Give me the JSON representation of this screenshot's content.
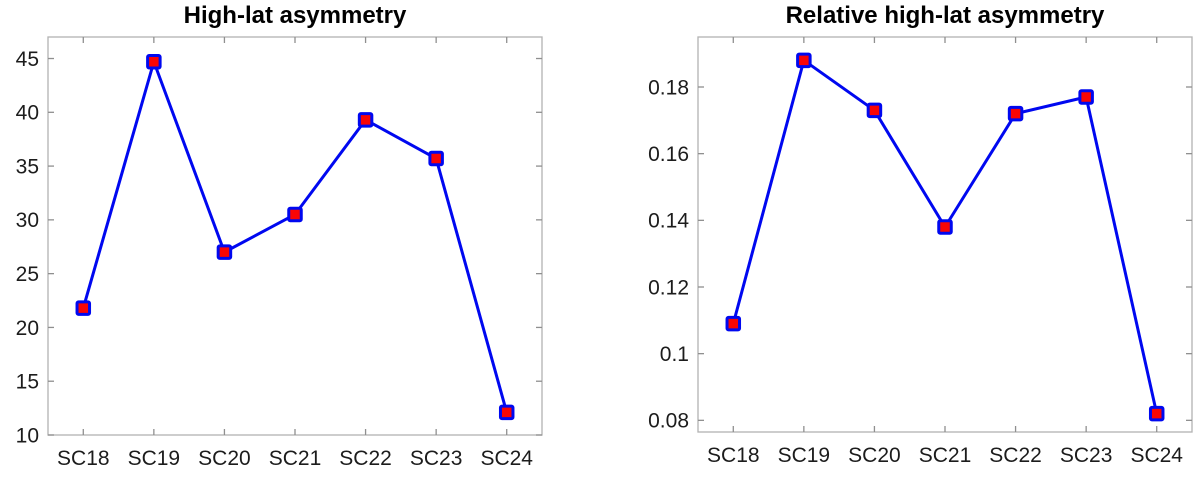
{
  "figure": {
    "background_color": "#ffffff",
    "line_color": "#0008f0",
    "marker_fill_color": "#fa0505",
    "marker_edge_color": "#0008f0",
    "axis_box_color": "#b2b2b2",
    "tick_mark_color": "#8f8f8f",
    "tick_label_color": "#1c1c1c",
    "title_color": "#000000"
  },
  "chart_data": [
    {
      "type": "line",
      "title": "High-lat asymmetry",
      "categories": [
        "SC18",
        "SC19",
        "SC20",
        "SC21",
        "SC22",
        "SC23",
        "SC24"
      ],
      "values": [
        21.8,
        44.7,
        27.0,
        30.5,
        39.3,
        35.7,
        12.1
      ],
      "xlabel": "",
      "ylabel": "",
      "y_ticks": [
        10,
        15,
        20,
        25,
        30,
        35,
        40,
        45
      ],
      "y_tick_labels": [
        "10",
        "15",
        "20",
        "25",
        "30",
        "35",
        "40",
        "45"
      ],
      "ylim": [
        10,
        47
      ],
      "xlim": [
        0.5,
        7.5
      ],
      "grid": false,
      "legend": null,
      "marker": "square",
      "box": true
    },
    {
      "type": "line",
      "title": "Relative high-lat asymmetry",
      "categories": [
        "SC18",
        "SC19",
        "SC20",
        "SC21",
        "SC22",
        "SC23",
        "SC24"
      ],
      "values": [
        0.109,
        0.188,
        0.173,
        0.138,
        0.172,
        0.177,
        0.082
      ],
      "xlabel": "",
      "ylabel": "",
      "y_ticks": [
        0.08,
        0.1,
        0.12,
        0.14,
        0.16,
        0.18
      ],
      "y_tick_labels": [
        "0.08",
        "0.1",
        "0.12",
        "0.14",
        "0.16",
        "0.18"
      ],
      "ylim": [
        0.0765,
        0.195
      ],
      "xlim": [
        0.5,
        7.5
      ],
      "grid": false,
      "legend": null,
      "marker": "square",
      "box": true
    }
  ]
}
